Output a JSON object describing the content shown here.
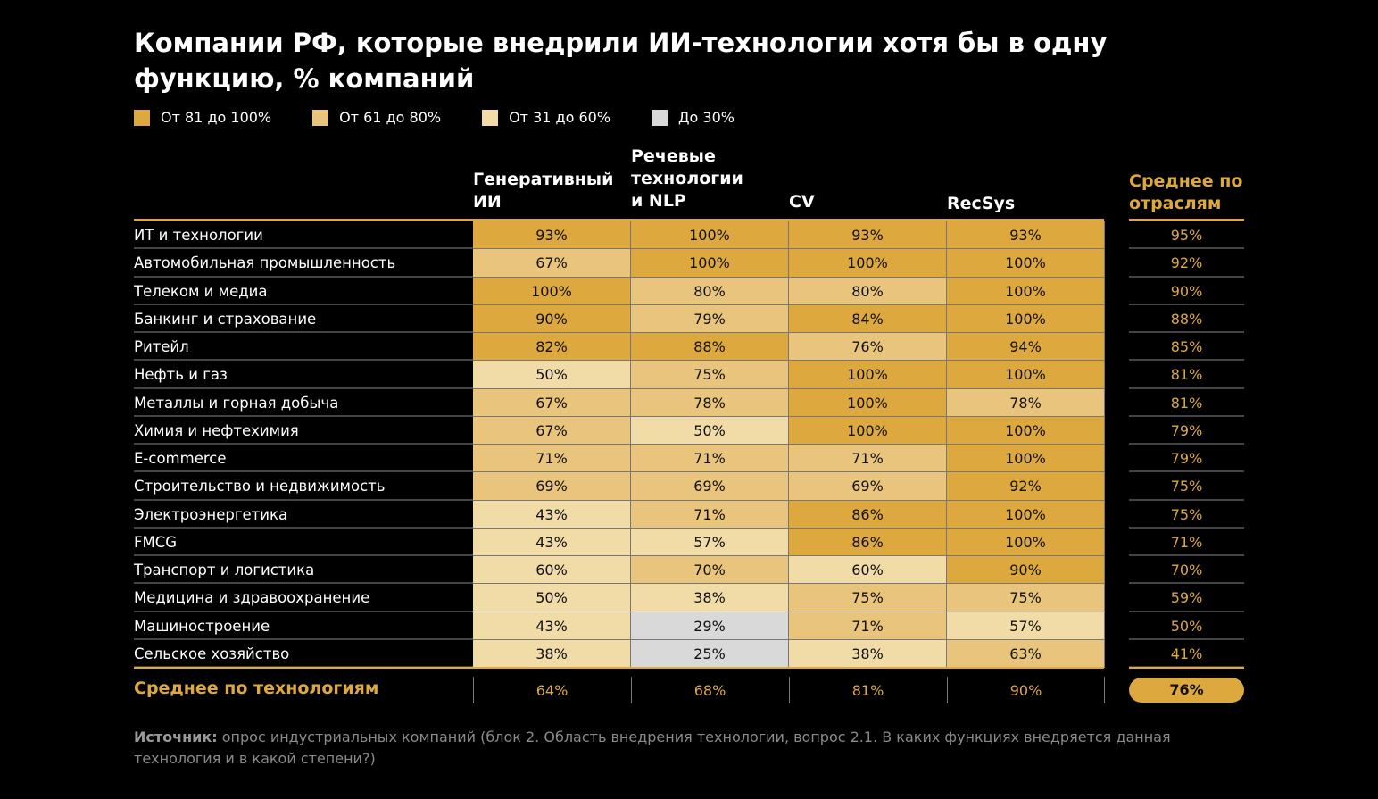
{
  "chart_data": {
    "type": "heatmap",
    "title": "Компании РФ, которые внедрили ИИ-технологии хотя бы в одну функцию, % компаний",
    "legend": [
      {
        "label": "От 81 до 100%",
        "color": "#dda83d",
        "min": 81,
        "max": 100
      },
      {
        "label": "От 61 до 80%",
        "color": "#e8c47c",
        "min": 61,
        "max": 80
      },
      {
        "label": "От 31 до 60%",
        "color": "#f1dca8",
        "min": 31,
        "max": 60
      },
      {
        "label": "До 30%",
        "color": "#d9d9d9",
        "min": 0,
        "max": 30
      }
    ],
    "columns": [
      "Генеративный ИИ",
      "Речевые технологии и NLP",
      "CV",
      "RecSys"
    ],
    "avg_column_label": "Среднее по отраслям",
    "rows": [
      {
        "label": "ИТ и технологии",
        "values": [
          93,
          100,
          93,
          93
        ],
        "avg": 95
      },
      {
        "label": "Автомобильная промышленность",
        "values": [
          67,
          100,
          100,
          100
        ],
        "avg": 92
      },
      {
        "label": "Телеком и медиа",
        "values": [
          100,
          80,
          80,
          100
        ],
        "avg": 90
      },
      {
        "label": "Банкинг и страхование",
        "values": [
          90,
          79,
          84,
          100
        ],
        "avg": 88
      },
      {
        "label": "Ритейл",
        "values": [
          82,
          88,
          76,
          94
        ],
        "avg": 85
      },
      {
        "label": "Нефть и газ",
        "values": [
          50,
          75,
          100,
          100
        ],
        "avg": 81
      },
      {
        "label": "Металлы и горная добыча",
        "values": [
          67,
          78,
          100,
          78
        ],
        "avg": 81
      },
      {
        "label": "Химия и нефтехимия",
        "values": [
          67,
          50,
          100,
          100
        ],
        "avg": 79
      },
      {
        "label": "E-commerce",
        "values": [
          71,
          71,
          71,
          100
        ],
        "avg": 79
      },
      {
        "label": "Строительство и недвижимость",
        "values": [
          69,
          69,
          69,
          92
        ],
        "avg": 75
      },
      {
        "label": "Электроэнергетика",
        "values": [
          43,
          71,
          86,
          100
        ],
        "avg": 75
      },
      {
        "label": "FMCG",
        "values": [
          43,
          57,
          86,
          100
        ],
        "avg": 71
      },
      {
        "label": "Транспорт и логистика",
        "values": [
          60,
          70,
          60,
          90
        ],
        "avg": 70
      },
      {
        "label": "Медицина и здравоохранение",
        "values": [
          50,
          38,
          75,
          75
        ],
        "avg": 59
      },
      {
        "label": "Машиностроение",
        "values": [
          43,
          29,
          71,
          57
        ],
        "avg": 50
      },
      {
        "label": "Сельское хозяйство",
        "values": [
          38,
          25,
          38,
          63
        ],
        "avg": 41
      }
    ],
    "avg_row_label": "Среднее по технологиям",
    "avg_row_values": [
      64,
      68,
      81,
      90
    ],
    "overall_avg": 76
  },
  "source_label": "Источник:",
  "source_text": " опрос индустриальных компаний (блок 2. Область внедрения технологии, вопрос 2.1. В каких функциях внедряется данная технология и в какой степени?)"
}
